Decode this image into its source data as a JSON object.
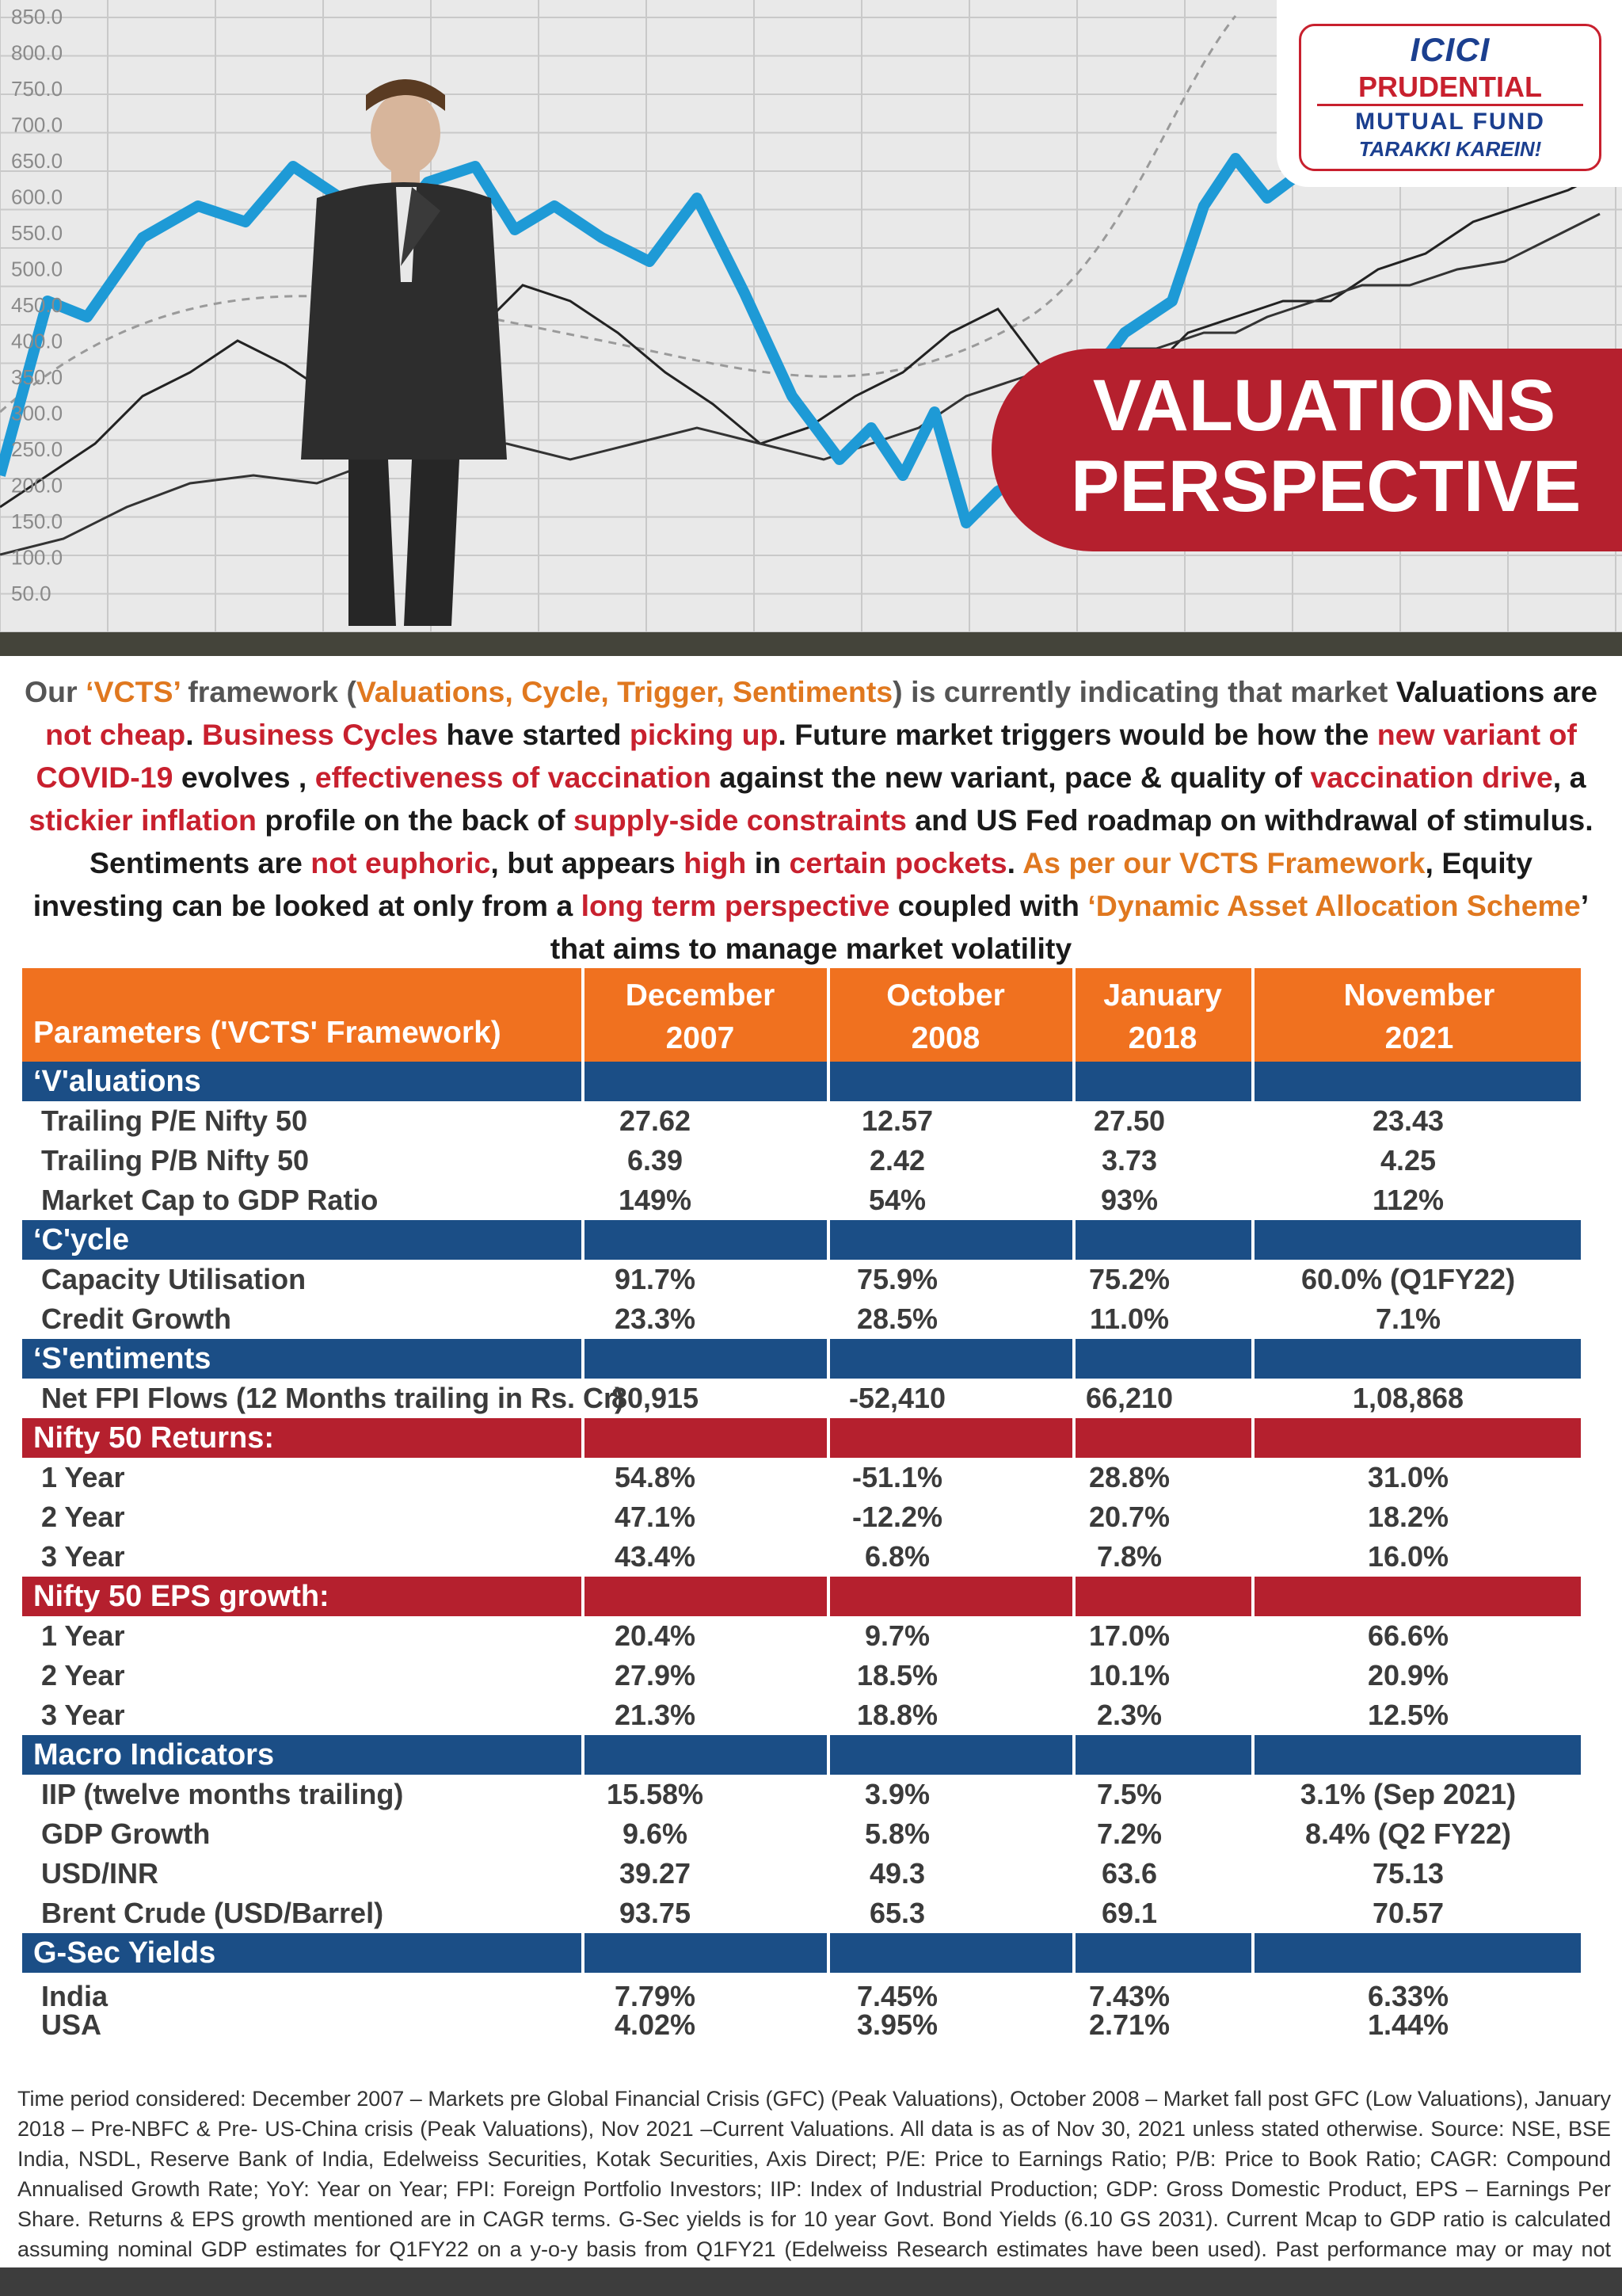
{
  "logo": {
    "line1": "ICICI",
    "line2": "PRUDENTIAL",
    "line3": "MUTUAL FUND",
    "line4": "TARAKKI KAREIN!"
  },
  "hero": {
    "title_line1": "VALUATIONS",
    "title_line2": "PERSPECTIVE",
    "axis_ticks": [
      "850.0",
      "800.0",
      "750.0",
      "700.0",
      "650.0",
      "600.0",
      "550.0",
      "500.0",
      "450.0",
      "400.0",
      "350.0",
      "300.0",
      "250.0",
      "200.0",
      "150.0",
      "100.0",
      "50.0"
    ]
  },
  "intro": [
    {
      "t": "Our ",
      "c": "grey"
    },
    {
      "t": "‘VCTS’",
      "c": "orange"
    },
    {
      "t": " framework (",
      "c": "grey"
    },
    {
      "t": "Valuations, Cycle, Trigger, Sentiments",
      "c": "orange"
    },
    {
      "t": ") is currently indicating that market",
      "c": "grey"
    },
    {
      "t": " Valuations are ",
      "c": "black"
    },
    {
      "t": "not cheap",
      "c": "red"
    },
    {
      "t": ". ",
      "c": "black"
    },
    {
      "t": "Business Cycles",
      "c": "red"
    },
    {
      "t": " have started ",
      "c": "black"
    },
    {
      "t": "picking up",
      "c": "red"
    },
    {
      "t": ". Future market triggers would be how the ",
      "c": "black"
    },
    {
      "t": "new variant of COVID-19",
      "c": "red"
    },
    {
      "t": " evolves , ",
      "c": "black"
    },
    {
      "t": "effectiveness of vaccination",
      "c": "red"
    },
    {
      "t": " against the new variant,  pace & quality of ",
      "c": "black"
    },
    {
      "t": "vaccination drive",
      "c": "red"
    },
    {
      "t": ", a ",
      "c": "black"
    },
    {
      "t": "stickier inflation",
      "c": "red"
    },
    {
      "t": " profile on the back of ",
      "c": "black"
    },
    {
      "t": "supply-side constraints",
      "c": "red"
    },
    {
      "t": " and US Fed roadmap on withdrawal of stimulus. Sentiments are ",
      "c": "black"
    },
    {
      "t": "not euphoric",
      "c": "red"
    },
    {
      "t": ", but appears ",
      "c": "black"
    },
    {
      "t": "high",
      "c": "red"
    },
    {
      "t": " in ",
      "c": "black"
    },
    {
      "t": "certain pockets",
      "c": "red"
    },
    {
      "t": ". ",
      "c": "black"
    },
    {
      "t": "As per our ",
      "c": "orange"
    },
    {
      "t": "VCTS Framework",
      "c": "orange"
    },
    {
      "t": ", Equity investing can be looked at only from a ",
      "c": "black"
    },
    {
      "t": "long term perspective",
      "c": "red"
    },
    {
      "t": " coupled with ",
      "c": "black"
    },
    {
      "t": "‘Dynamic Asset Allocation Scheme",
      "c": "orange"
    },
    {
      "t": "’ that aims to manage market volatility",
      "c": "black"
    }
  ],
  "table": {
    "param_header": "Parameters ('VCTS' Framework)",
    "periods": [
      {
        "line1": "December",
        "line2": "2007"
      },
      {
        "line1": "October",
        "line2": "2008"
      },
      {
        "line1": "January",
        "line2": "2018"
      },
      {
        "line1": "November",
        "line2": "2021"
      }
    ],
    "sections": [
      {
        "title": "‘V'aluations",
        "color": "blue",
        "rows": [
          {
            "label": "Trailing P/E Nifty 50",
            "values": [
              "27.62",
              "12.57",
              "27.50",
              "23.43"
            ]
          },
          {
            "label": "Trailing P/B Nifty 50",
            "values": [
              "6.39",
              "2.42",
              "3.73",
              "4.25"
            ]
          },
          {
            "label": "Market Cap to GDP Ratio",
            "values": [
              "149%",
              "54%",
              "93%",
              "112%"
            ]
          }
        ]
      },
      {
        "title": "‘C'ycle",
        "color": "blue",
        "rows": [
          {
            "label": "Capacity Utilisation",
            "values": [
              "91.7%",
              "75.9%",
              "75.2%",
              "60.0% (Q1FY22)"
            ]
          },
          {
            "label": "Credit Growth",
            "values": [
              "23.3%",
              "28.5%",
              "11.0%",
              "7.1%"
            ]
          }
        ]
      },
      {
        "title": "‘S'entiments",
        "color": "blue",
        "rows": [
          {
            "label": "Net FPI Flows (12 Months trailing in Rs. Cr)",
            "values": [
              "80,915",
              "-52,410",
              "66,210",
              "1,08,868"
            ]
          }
        ]
      },
      {
        "title": "Nifty 50 Returns:",
        "color": "red",
        "rows": [
          {
            "label": "1 Year",
            "values": [
              "54.8%",
              "-51.1%",
              "28.8%",
              "31.0%"
            ]
          },
          {
            "label": "2 Year",
            "values": [
              "47.1%",
              "-12.2%",
              "20.7%",
              "18.2%"
            ]
          },
          {
            "label": "3 Year",
            "values": [
              "43.4%",
              "6.8%",
              "7.8%",
              "16.0%"
            ]
          }
        ]
      },
      {
        "title": "Nifty 50 EPS growth:",
        "color": "red",
        "rows": [
          {
            "label": "1 Year",
            "values": [
              "20.4%",
              "9.7%",
              "17.0%",
              "66.6%"
            ]
          },
          {
            "label": "2 Year",
            "values": [
              "27.9%",
              "18.5%",
              "10.1%",
              "20.9%"
            ]
          },
          {
            "label": "3 Year",
            "values": [
              "21.3%",
              "18.8%",
              "2.3%",
              "12.5%"
            ]
          }
        ]
      },
      {
        "title": "Macro Indicators",
        "color": "blue",
        "rows": [
          {
            "label": "IIP (twelve months trailing)",
            "values": [
              "15.58%",
              "3.9%",
              "7.5%",
              "3.1% (Sep 2021)"
            ]
          },
          {
            "label": "GDP Growth",
            "values": [
              "9.6%",
              "5.8%",
              "7.2%",
              "8.4% (Q2 FY22)"
            ]
          },
          {
            "label": "USD/INR",
            "values": [
              "39.27",
              "49.3",
              "63.6",
              "75.13"
            ]
          },
          {
            "label": "Brent Crude (USD/Barrel)",
            "values": [
              "93.75",
              "65.3",
              "69.1",
              "70.57"
            ]
          }
        ]
      },
      {
        "title": "G-Sec Yields",
        "color": "blue",
        "rows": [
          {
            "label": "India",
            "values": [
              "7.79%",
              "7.45%",
              "7.43%",
              "6.33%"
            ]
          },
          {
            "label": "USA",
            "values": [
              "4.02%",
              "3.95%",
              "2.71%",
              "1.44%"
            ]
          }
        ]
      }
    ]
  },
  "footnote": "Time period considered: December 2007 – Markets pre Global Financial Crisis (GFC) (Peak Valuations), October 2008 – Market fall post GFC (Low Valuations), January 2018 – Pre-NBFC & Pre- US-China crisis (Peak Valuations), Nov 2021 –Current Valuations. All data is as of Nov 30, 2021 unless stated otherwise. Source: NSE, BSE India, NSDL, Reserve Bank of India, Edelweiss Securities, Kotak Securities, Axis Direct; P/E: Price to Earnings Ratio; P/B: Price to Book Ratio; CAGR: Compound Annualised Growth Rate; YoY: Year on Year; FPI: Foreign Portfolio Investors; IIP: Index of Industrial Production; GDP: Gross Domestic Product, EPS – Earnings Per Share. Returns & EPS growth mentioned are in CAGR terms. G-Sec yields is for 10 year Govt. Bond Yields (6.10 GS 2031). Current Mcap to GDP ratio is calculated assuming nominal GDP estimates for Q1FY22 on a y-o-y basis from Q1FY21 (Edelweiss Research estimates have been used). Past performance may or may not sustain in future."
}
